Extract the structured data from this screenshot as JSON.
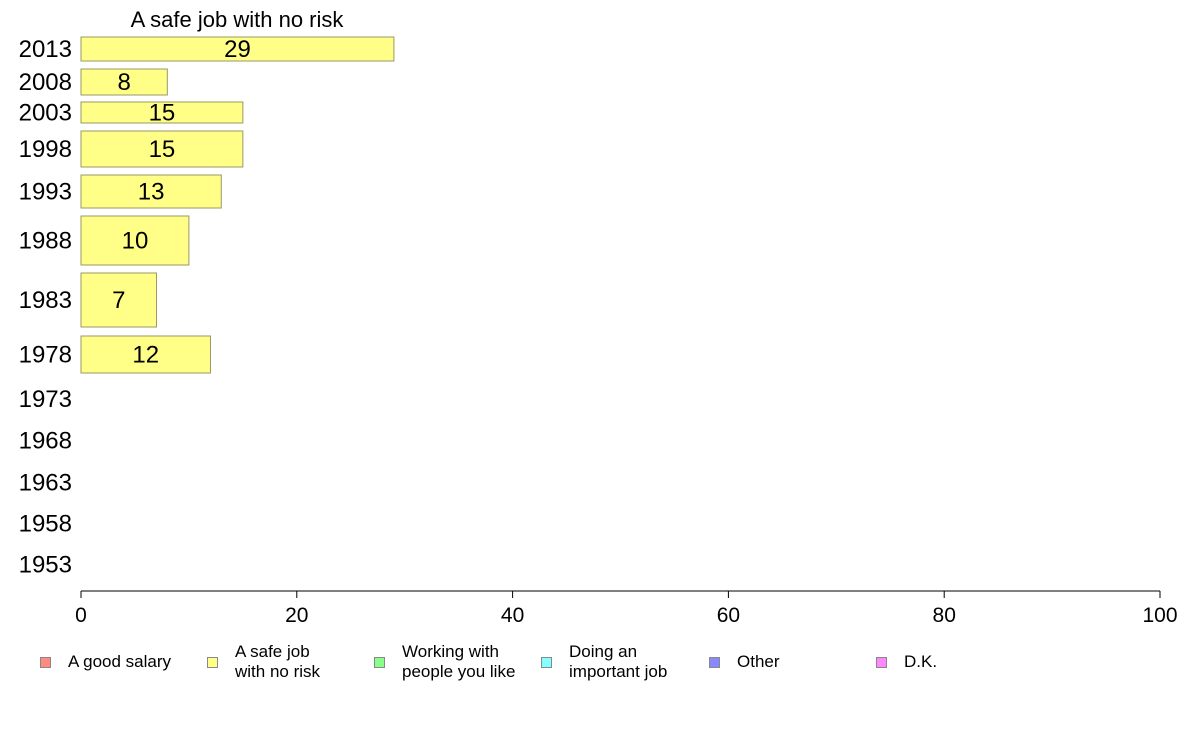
{
  "chart_data": {
    "type": "bar",
    "orientation": "horizontal",
    "title": "A safe job with no risk",
    "categories": [
      "2013",
      "2008",
      "2003",
      "1998",
      "1993",
      "1988",
      "1983",
      "1978",
      "1973",
      "1968",
      "1963",
      "1958",
      "1953"
    ],
    "series": [
      {
        "name": "A safe job with no risk",
        "values": [
          29,
          8,
          15,
          15,
          13,
          10,
          7,
          12,
          null,
          null,
          null,
          null,
          null
        ],
        "value_labels": [
          "29",
          "8",
          "15",
          "15",
          "13",
          "10",
          "7",
          "12",
          "",
          "",
          "",
          "",
          ""
        ]
      }
    ],
    "xlim": [
      0,
      100
    ],
    "xticks": [
      "0",
      "20",
      "40",
      "60",
      "80",
      "100"
    ],
    "grid": false,
    "bar_color": "#ffff88",
    "bar_stroke": "#999966",
    "legend_position": "bottom",
    "legend": [
      {
        "label": "A good salary",
        "color": "#ff8a80"
      },
      {
        "label": "A safe job\nwith no risk",
        "color": "#ffff88"
      },
      {
        "label": "Working with\npeople you like",
        "color": "#88ff88"
      },
      {
        "label": "Doing an\nimportant job",
        "color": "#88ffff"
      },
      {
        "label": "Other",
        "color": "#8888ff"
      },
      {
        "label": "D.K.",
        "color": "#ff88ff"
      }
    ]
  }
}
